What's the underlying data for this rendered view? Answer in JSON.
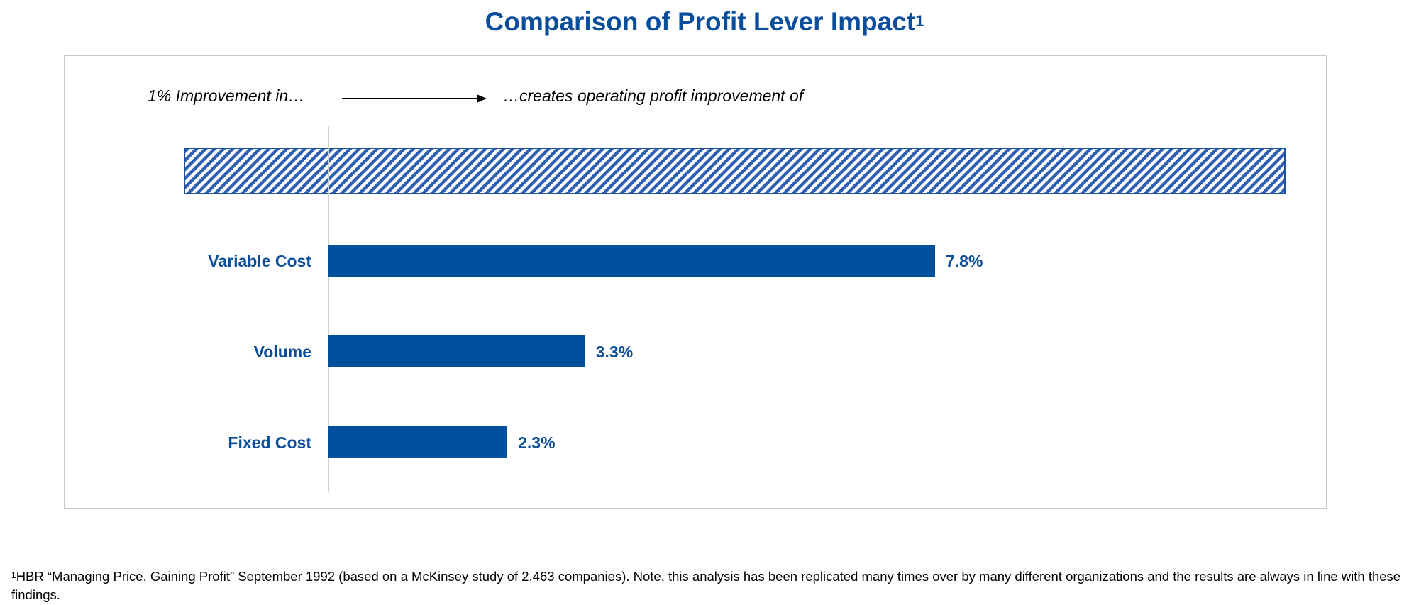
{
  "title": "Comparison of Profit Lever Impact",
  "title_superscript": "1",
  "header": {
    "left": "1% Improvement in…",
    "right": "…creates operating profit improvement of"
  },
  "colors": {
    "title": "#0a4d9a",
    "bar": "#00509e",
    "text": "#0a4d9a",
    "hatch": "#2d5fb3"
  },
  "chart_data": {
    "type": "bar",
    "orientation": "horizontal",
    "categories": [
      "Variable Cost",
      "Volume",
      "Fixed Cost"
    ],
    "values": [
      7.8,
      3.3,
      2.3
    ],
    "value_labels": [
      "7.8%",
      "3.3%",
      "2.3%"
    ],
    "xlim": [
      0,
      12
    ],
    "grid": false,
    "hatched_bar_label": ""
  },
  "footnote": {
    "marker": "1",
    "text": "HBR “Managing Price, Gaining Profit” September 1992 (based on a McKinsey study of 2,463 companies). Note, this analysis has been replicated many times over by many different organizations and the results are always in line with these findings."
  }
}
